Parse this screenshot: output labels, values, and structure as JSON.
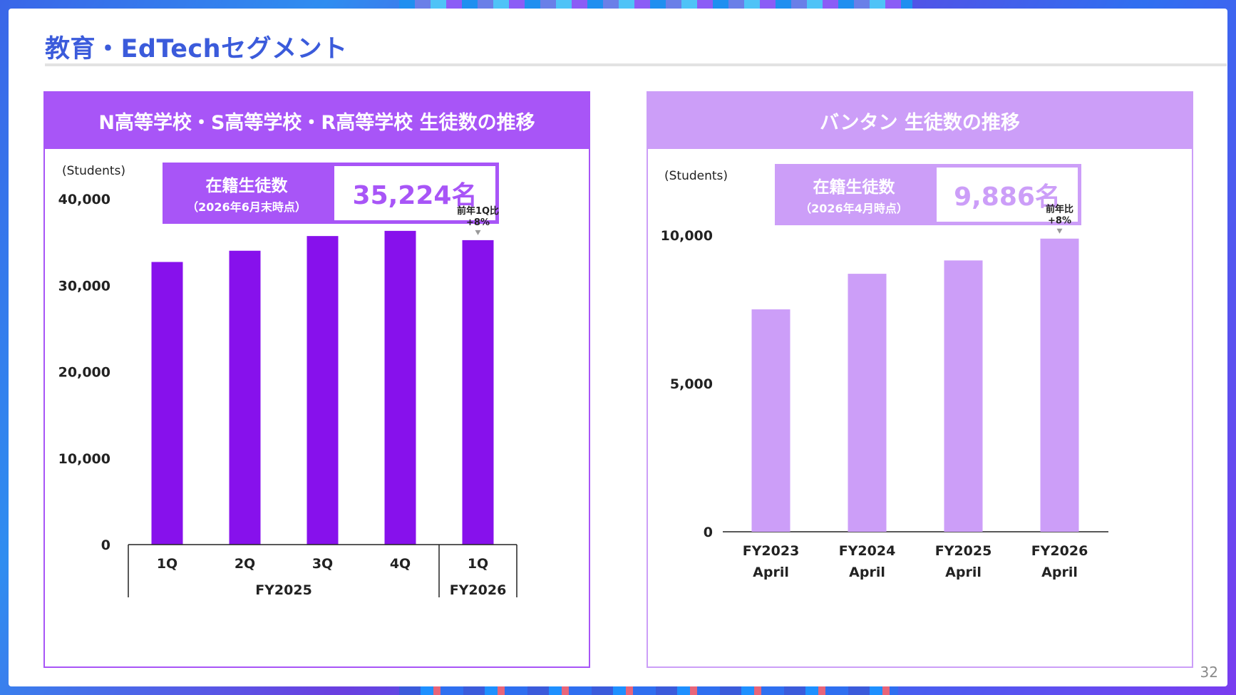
{
  "page": {
    "title": "教育・EdTechセグメント",
    "page_number": "32"
  },
  "left_panel": {
    "header": "N高等学校・S高等学校・R高等学校 生徒数の推移",
    "kpi_label": "在籍生徒数",
    "kpi_sublabel": "（2026年6月末時点）",
    "kpi_value": "35,224名",
    "units_label": "(Students)"
  },
  "right_panel": {
    "header": "バンタン 生徒数の推移",
    "kpi_label": "在籍生徒数",
    "kpi_sublabel": "（2026年4月時点）",
    "kpi_value": "9,886名",
    "units_label": "(Students)"
  },
  "colors": {
    "left_bar": "#8711ec",
    "right_bar": "#cc9ef8",
    "left_accent": "#a855f7",
    "title_blue": "#3b5bdb"
  },
  "chart_data": [
    {
      "type": "bar",
      "categories": [
        "1Q",
        "2Q",
        "3Q",
        "4Q",
        "1Q"
      ],
      "groups": [
        {
          "label": "FY2025",
          "span": [
            0,
            3
          ]
        },
        {
          "label": "FY2026",
          "span": [
            4,
            4
          ]
        }
      ],
      "values": [
        32700,
        34000,
        35700,
        36300,
        35224
      ],
      "ylabel": "(Students)",
      "ylim": [
        0,
        40000
      ],
      "yticks": [
        "0",
        "10,000",
        "20,000",
        "30,000",
        "40,000"
      ],
      "ytick_values": [
        0,
        10000,
        20000,
        30000,
        40000
      ],
      "annotation": {
        "index": 4,
        "lines": [
          "前年1Q比",
          "+8%"
        ]
      },
      "grid": false
    },
    {
      "type": "bar",
      "categories": [
        [
          "FY2023",
          "April"
        ],
        [
          "FY2024",
          "April"
        ],
        [
          "FY2025",
          "April"
        ],
        [
          "FY2026",
          "April"
        ]
      ],
      "values": [
        7500,
        8700,
        9150,
        9886
      ],
      "ylabel": "(Students)",
      "ylim": [
        0,
        10000
      ],
      "yticks": [
        "0",
        "5,000",
        "10,000"
      ],
      "ytick_values": [
        0,
        5000,
        10000
      ],
      "annotation": {
        "index": 3,
        "lines": [
          "前年比",
          "+8%"
        ]
      },
      "grid": false
    }
  ]
}
